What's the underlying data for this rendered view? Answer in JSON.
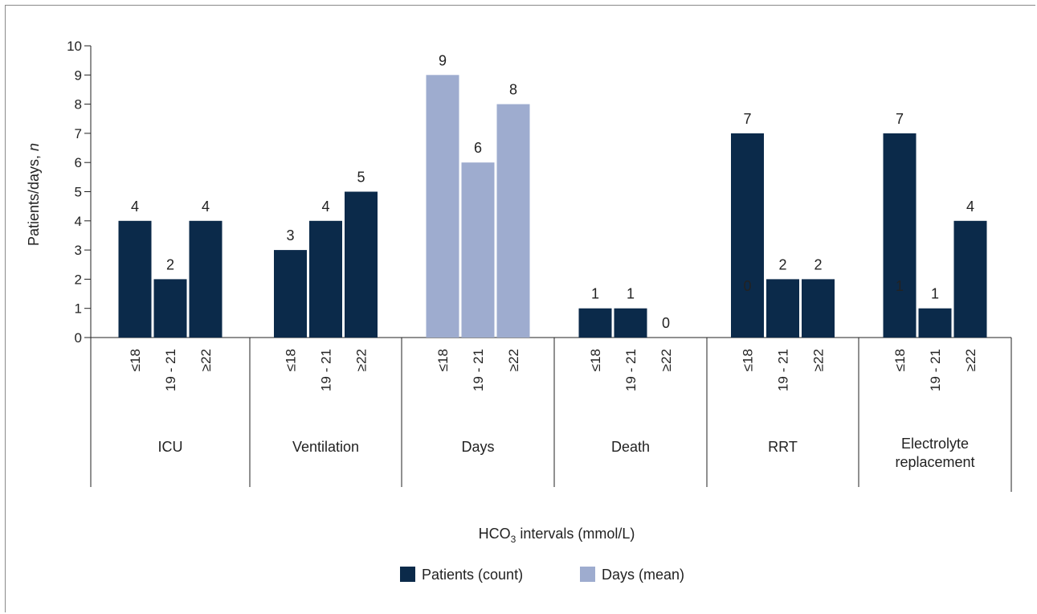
{
  "chart_data": {
    "type": "bar",
    "ylabel_main": "Patients/days, ",
    "ylabel_italic": "n",
    "xlabel_main": "HCO",
    "xlabel_sub": "3",
    "xlabel_rest": " intervals (mmol/L)",
    "ylim": [
      0,
      10
    ],
    "yticks": [
      "0",
      "1",
      "2",
      "3",
      "4",
      "5",
      "6",
      "7",
      "8",
      "9",
      "10"
    ],
    "groups": [
      {
        "name": "ICU",
        "bars": [
          {
            "label": "≤18",
            "value": 4,
            "value_label": "4",
            "series": "Patients (count)"
          },
          {
            "label": "19 - 21",
            "value": 2,
            "value_label": "2",
            "series": "Patients (count)"
          },
          {
            "label": "≥22",
            "value": 4,
            "value_label": "4",
            "series": "Patients (count)"
          }
        ]
      },
      {
        "name": "Ventilation",
        "bars": [
          {
            "label": "≤18",
            "value": 3,
            "value_label": "3",
            "series": "Patients (count)"
          },
          {
            "label": "19 - 21",
            "value": 4,
            "value_label": "4",
            "series": "Patients (count)"
          },
          {
            "label": "≥22",
            "value": 5,
            "value_label": "5",
            "series": "Patients (count)"
          }
        ]
      },
      {
        "name": "Days",
        "bars": [
          {
            "label": "≤18",
            "value": 9,
            "value_label": "9",
            "series": "Days (mean)"
          },
          {
            "label": "19 - 21",
            "value": 6,
            "value_label": "6",
            "series": "Days (mean)"
          },
          {
            "label": "≥22",
            "value": 8,
            "value_label": "8",
            "series": "Days (mean)"
          }
        ]
      },
      {
        "name": "Death",
        "bars": [
          {
            "label": "≤18",
            "value": 1,
            "value_label": "1",
            "series": "Patients (count)"
          },
          {
            "label": "19 - 21",
            "value": 1,
            "value_label": "1",
            "series": "Patients (count)"
          },
          {
            "label": "≥22",
            "value": 0,
            "value_label": "0",
            "series": "Patients (count)"
          }
        ]
      },
      {
        "name": "RRT",
        "bars": [
          {
            "label": "≤18",
            "value": 7,
            "value_label": "7",
            "inner_label": "0",
            "series": "Patients (count)"
          },
          {
            "label": "19 - 21",
            "value": 2,
            "value_label": "2",
            "series": "Patients (count)"
          },
          {
            "label": "≥22",
            "value": 2,
            "value_label": "2",
            "series": "Patients (count)"
          }
        ]
      },
      {
        "name": "Electrolyte replacement",
        "name_lines": [
          "Electrolyte",
          "replacement"
        ],
        "bars": [
          {
            "label": "≤18",
            "value": 7,
            "value_label": "7",
            "inner_label": "1",
            "series": "Patients (count)"
          },
          {
            "label": "19 - 21",
            "value": 1,
            "value_label": "1",
            "series": "Patients (count)"
          },
          {
            "label": "≥22",
            "value": 4,
            "value_label": "4",
            "series": "Patients (count)"
          }
        ]
      }
    ],
    "legend": [
      {
        "name": "Patients (count)",
        "color": "#0b2a4a"
      },
      {
        "name": "Days (mean)",
        "color": "#9eaccf"
      }
    ],
    "legend_position": "bottom-center",
    "grid": false
  }
}
